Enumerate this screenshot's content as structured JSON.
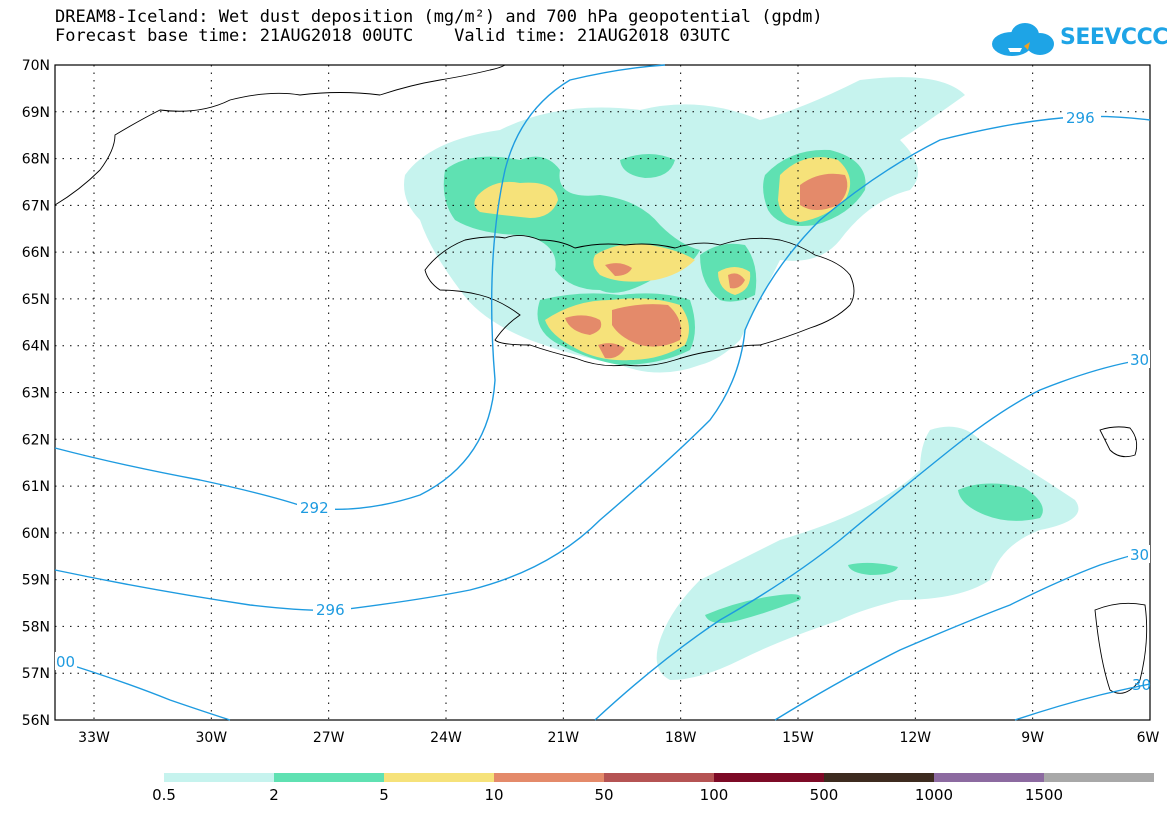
{
  "title": {
    "line1": "DREAM8-Iceland: Wet dust deposition (mg/m²) and 700 hPa geopotential (gpdm)",
    "line2": "Forecast base time: 21AUG2018 00UTC    Valid time: 21AUG2018 03UTC"
  },
  "logo": {
    "text": "SEEVCCC",
    "icon": "cloud-icon"
  },
  "axes": {
    "lat_labels": [
      "70N",
      "69N",
      "68N",
      "67N",
      "66N",
      "65N",
      "64N",
      "63N",
      "62N",
      "61N",
      "60N",
      "59N",
      "58N",
      "57N",
      "56N"
    ],
    "lon_labels": [
      "33W",
      "30W",
      "27W",
      "24W",
      "21W",
      "18W",
      "15W",
      "12W",
      "9W",
      "6W"
    ]
  },
  "contour_labels": [
    "292",
    "296",
    "296",
    "30",
    "30",
    "00",
    "30"
  ],
  "legend": {
    "colors": [
      "#c6f3ee",
      "#5fe1b2",
      "#f6e27a",
      "#e48a6a",
      "#b55353",
      "#7d0a26",
      "#3d2b1f",
      "#8c6aa0",
      "#a8a8a8"
    ],
    "labels": [
      "0.5",
      "2",
      "5",
      "10",
      "50",
      "100",
      "500",
      "1000",
      "1500"
    ]
  },
  "colors": {
    "contour": "#1e9be0",
    "grid": "#000000"
  }
}
